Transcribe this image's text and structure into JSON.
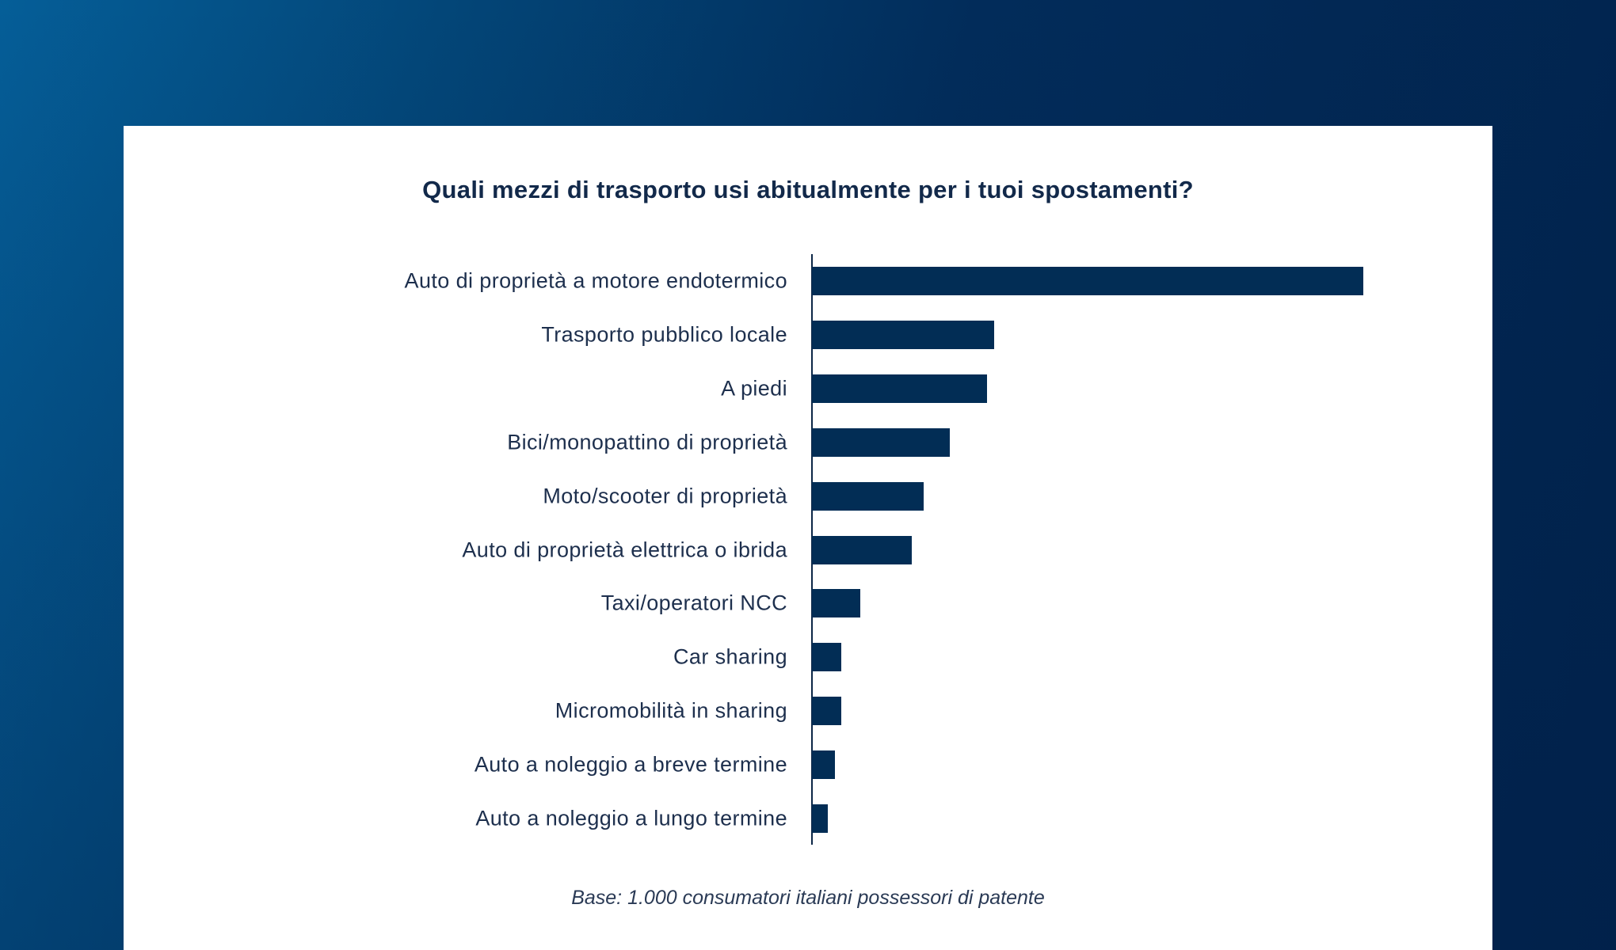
{
  "chart_data": {
    "type": "bar",
    "orientation": "horizontal",
    "title": "Quali mezzi di trasporto usi abitualmente per i tuoi spostamenti?",
    "categories": [
      "Auto di proprietà a motore endotermico",
      "Trasporto pubblico locale",
      "A piedi",
      "Bici/monopattino di proprietà",
      "Moto/scooter di proprietà",
      "Auto di proprietà elettrica o ibrida",
      "Taxi/operatori NCC",
      "Car sharing",
      "Micromobilità in sharing",
      "Auto a noleggio a breve termine",
      "Auto a noleggio a lungo termine"
    ],
    "values": [
      100,
      33,
      31.8,
      25,
      20.3,
      18.1,
      8.8,
      5.3,
      5.3,
      4.2,
      2.9
    ],
    "value_note_unit": "relative length (largest = 100), no values printed",
    "xlim": [
      0,
      100
    ],
    "xlabel": "",
    "ylabel": "",
    "grid": false,
    "legend": "none",
    "bar_color": "#022d55",
    "footnote": "Base: 1.000 consumatori italiani possessori di patente"
  },
  "colors": {
    "background_start": "#055e98",
    "background_end": "#01234d",
    "card": "#ffffff"
  }
}
